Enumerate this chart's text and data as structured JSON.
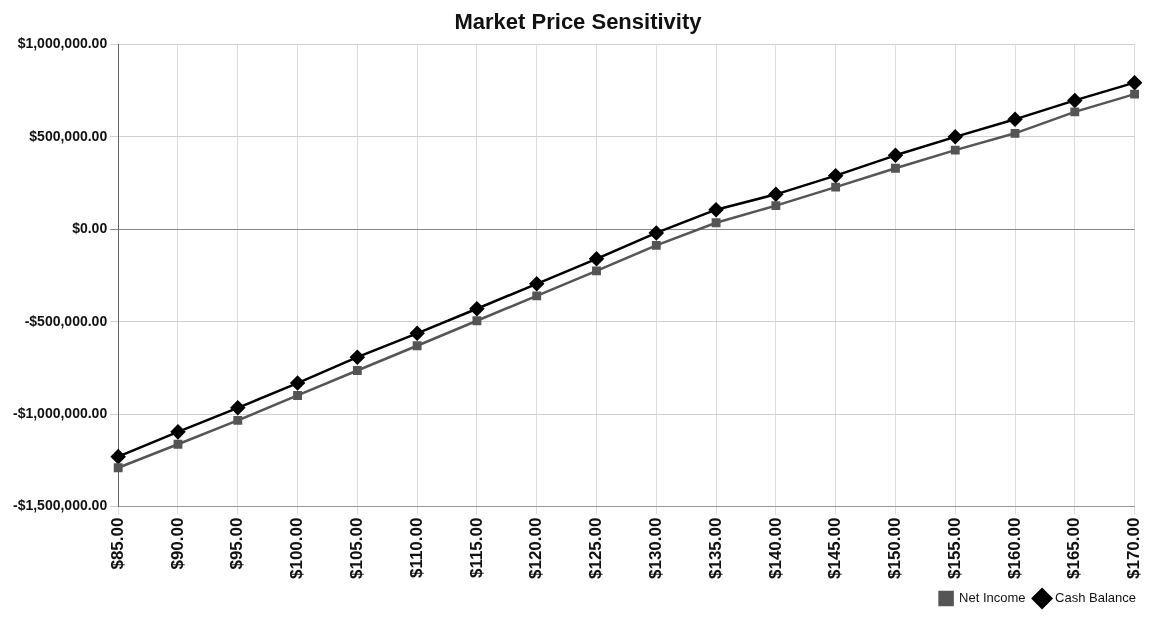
{
  "chart_data": {
    "type": "line",
    "title": "Market Price Sensitivity",
    "categories": [
      "$85.00",
      "$90.00",
      "$95.00",
      "$100.00",
      "$105.00",
      "$110.00",
      "$115.00",
      "$120.00",
      "$125.00",
      "$130.00",
      "$135.00",
      "$140.00",
      "$145.00",
      "$150.00",
      "$155.00",
      "$160.00",
      "$165.00",
      "$170.00"
    ],
    "series": [
      {
        "name": "Net Income",
        "color": "#555555",
        "marker": "square",
        "values": [
          -1290000,
          -1163000,
          -1034000,
          -899000,
          -764000,
          -630000,
          -495000,
          -360000,
          -225000,
          -87000,
          35000,
          128000,
          228000,
          330000,
          428000,
          519000,
          635000,
          731000
        ]
      },
      {
        "name": "Cash Balance",
        "color": "#000000",
        "marker": "diamond",
        "values": [
          -1230000,
          -1096000,
          -966000,
          -832000,
          -692000,
          -563000,
          -430000,
          -295000,
          -160000,
          -20000,
          106000,
          189000,
          290000,
          400000,
          500000,
          595000,
          697000,
          793000
        ]
      }
    ],
    "ylim": [
      -1500000,
      1000000
    ],
    "yticks": [
      {
        "value": -1500000,
        "label": "-$1,500,000.00"
      },
      {
        "value": -1000000,
        "label": "-$1,000,000.00"
      },
      {
        "value": -500000,
        "label": "-$500,000.00"
      },
      {
        "value": 0,
        "label": "$0.00"
      },
      {
        "value": 500000,
        "label": "$500,000.00"
      },
      {
        "value": 1000000,
        "label": "$1,000,000.00"
      }
    ],
    "grid": true,
    "legend": "bottom right",
    "line_style": "solid"
  }
}
